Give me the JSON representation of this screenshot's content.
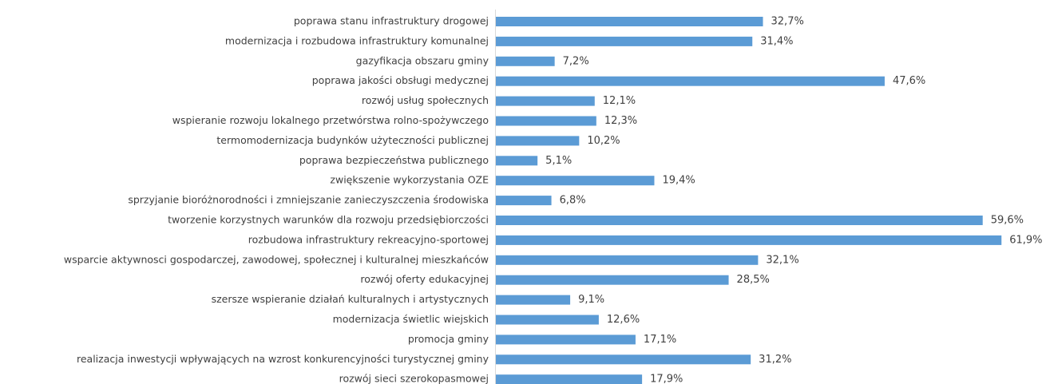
{
  "chart_data": {
    "type": "bar",
    "orientation": "horizontal",
    "color": "#5b9bd5",
    "categories": [
      "poprawa stanu infrastruktury drogowej",
      "modernizacja i rozbudowa infrastruktury komunalnej",
      "gazyfikacja obszaru gminy",
      "poprawa jakości obsługi medycznej",
      "rozwój usług społecznych",
      "wspieranie rozwoju lokalnego przetwórstwa rolno-spożywczego",
      "termomodernizacja budynków użyteczności publicznej",
      "poprawa bezpieczeństwa publicznego",
      "zwiększenie wykorzystania OZE",
      "sprzyjanie bioróżnorodności i zmniejszanie zanieczyszczenia środowiska",
      "tworzenie korzystnych warunków dla rozwoju przedsiębiorczości",
      "rozbudowa infrastruktury rekreacyjno-sportowej",
      "wsparcie aktywnosci gospodarczej, zawodowej, społecznej i kulturalnej mieszkańców",
      "rozwój oferty edukacyjnej",
      "szersze wspieranie działań kulturalnych i artystycznych",
      "modernizacja świetlic wiejskich",
      "promocja gminy",
      "realizacja inwestycji wpływających na wzrost konkurencyjności turystycznej gminy",
      "rozwój sieci szerokopasmowej"
    ],
    "values": [
      32.7,
      31.4,
      7.2,
      47.6,
      12.1,
      12.3,
      10.2,
      5.1,
      19.4,
      6.8,
      59.6,
      61.9,
      32.1,
      28.5,
      9.1,
      12.6,
      17.1,
      31.2,
      17.9
    ],
    "value_labels": [
      "32,7%",
      "31,4%",
      "7,2%",
      "47,6%",
      "12,1%",
      "12,3%",
      "10,2%",
      "5,1%",
      "19,4%",
      "6,8%",
      "59,6%",
      "61,9%",
      "32,1%",
      "28,5%",
      "9,1%",
      "12,6%",
      "17,1%",
      "31,2%",
      "17,9%"
    ]
  }
}
